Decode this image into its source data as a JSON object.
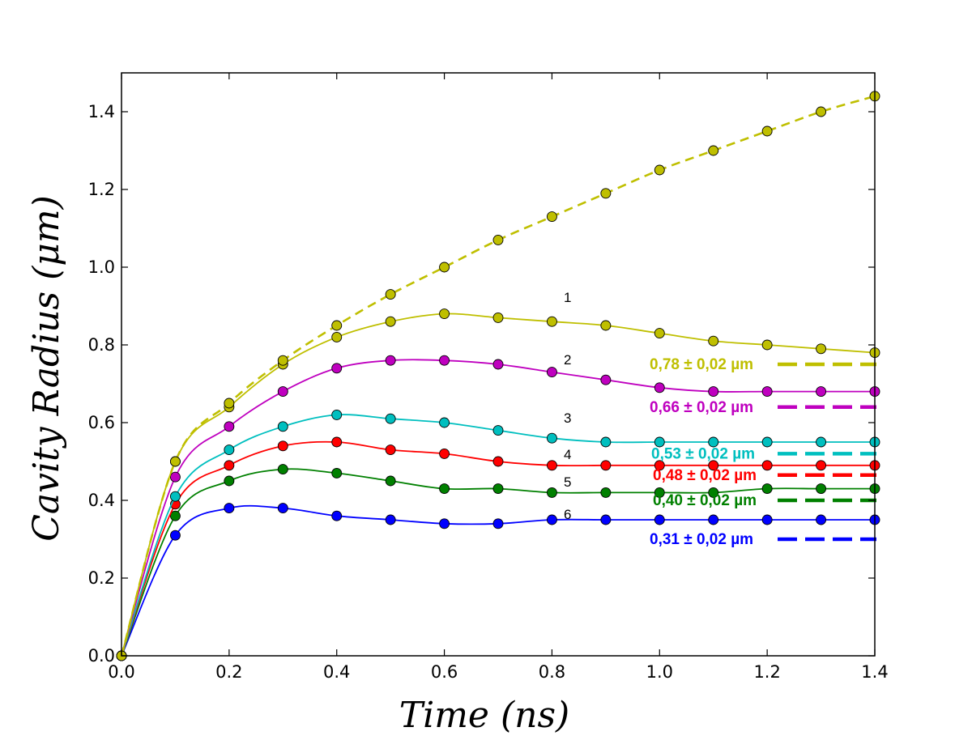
{
  "chart_data": {
    "type": "line",
    "title": "",
    "xlabel": "Time (ns)",
    "ylabel": "Cavity Radius (μm)",
    "xlim": [
      0,
      1.4
    ],
    "ylim": [
      0,
      1.5
    ],
    "grid": false,
    "xticks": [
      "0.0",
      "0.2",
      "0.4",
      "0.6",
      "0.8",
      "1.0",
      "1.2",
      "1.4"
    ],
    "yticks": [
      "0.0",
      "0.2",
      "0.4",
      "0.6",
      "0.8",
      "1.0",
      "1.2",
      "1.4"
    ],
    "x": [
      0.0,
      0.1,
      0.2,
      0.3,
      0.4,
      0.5,
      0.6,
      0.7,
      0.8,
      0.9,
      1.0,
      1.1,
      1.2,
      1.3,
      1.4
    ],
    "series": [
      {
        "label": "",
        "color": "#bfbf00",
        "dashed": true,
        "values": [
          0.0,
          0.5,
          0.65,
          0.76,
          0.85,
          0.93,
          1.0,
          1.07,
          1.13,
          1.19,
          1.25,
          1.3,
          1.35,
          1.4,
          1.44
        ]
      },
      {
        "label": "1",
        "color": "#bfbf00",
        "dashed": false,
        "values": [
          0.0,
          0.5,
          0.64,
          0.75,
          0.82,
          0.86,
          0.88,
          0.87,
          0.86,
          0.85,
          0.83,
          0.81,
          0.8,
          0.79,
          0.78
        ],
        "asymptote": 0.75,
        "asymptote_label": "0,78 ± 0,02 µm"
      },
      {
        "label": "2",
        "color": "#bf00bf",
        "dashed": false,
        "values": [
          0.0,
          0.46,
          0.59,
          0.68,
          0.74,
          0.76,
          0.76,
          0.75,
          0.73,
          0.71,
          0.69,
          0.68,
          0.68,
          0.68,
          0.68
        ],
        "asymptote": 0.64,
        "asymptote_label": "0,66 ± 0,02 µm"
      },
      {
        "label": "3",
        "color": "#00bfbf",
        "dashed": false,
        "values": [
          0.0,
          0.41,
          0.53,
          0.59,
          0.62,
          0.61,
          0.6,
          0.58,
          0.56,
          0.55,
          0.55,
          0.55,
          0.55,
          0.55,
          0.55
        ],
        "asymptote": 0.52,
        "asymptote_label": "0,53 ± 0,02 µm"
      },
      {
        "label": "4",
        "color": "#ff0000",
        "dashed": false,
        "values": [
          0.0,
          0.39,
          0.49,
          0.54,
          0.55,
          0.53,
          0.52,
          0.5,
          0.49,
          0.49,
          0.49,
          0.49,
          0.49,
          0.49,
          0.49
        ],
        "asymptote": 0.465,
        "asymptote_label": "0,48 ± 0,02 µm"
      },
      {
        "label": "5",
        "color": "#008000",
        "dashed": false,
        "values": [
          0.0,
          0.36,
          0.45,
          0.48,
          0.47,
          0.45,
          0.43,
          0.43,
          0.42,
          0.42,
          0.42,
          0.42,
          0.43,
          0.43,
          0.43
        ],
        "asymptote": 0.4,
        "asymptote_label": "0,40 ± 0,02 µm"
      },
      {
        "label": "6",
        "color": "#0000ff",
        "dashed": false,
        "values": [
          0.0,
          0.31,
          0.38,
          0.38,
          0.36,
          0.35,
          0.34,
          0.34,
          0.35,
          0.35,
          0.35,
          0.35,
          0.35,
          0.35,
          0.35
        ],
        "asymptote": 0.3,
        "asymptote_label": "0,31 ± 0,02 µm"
      }
    ]
  }
}
